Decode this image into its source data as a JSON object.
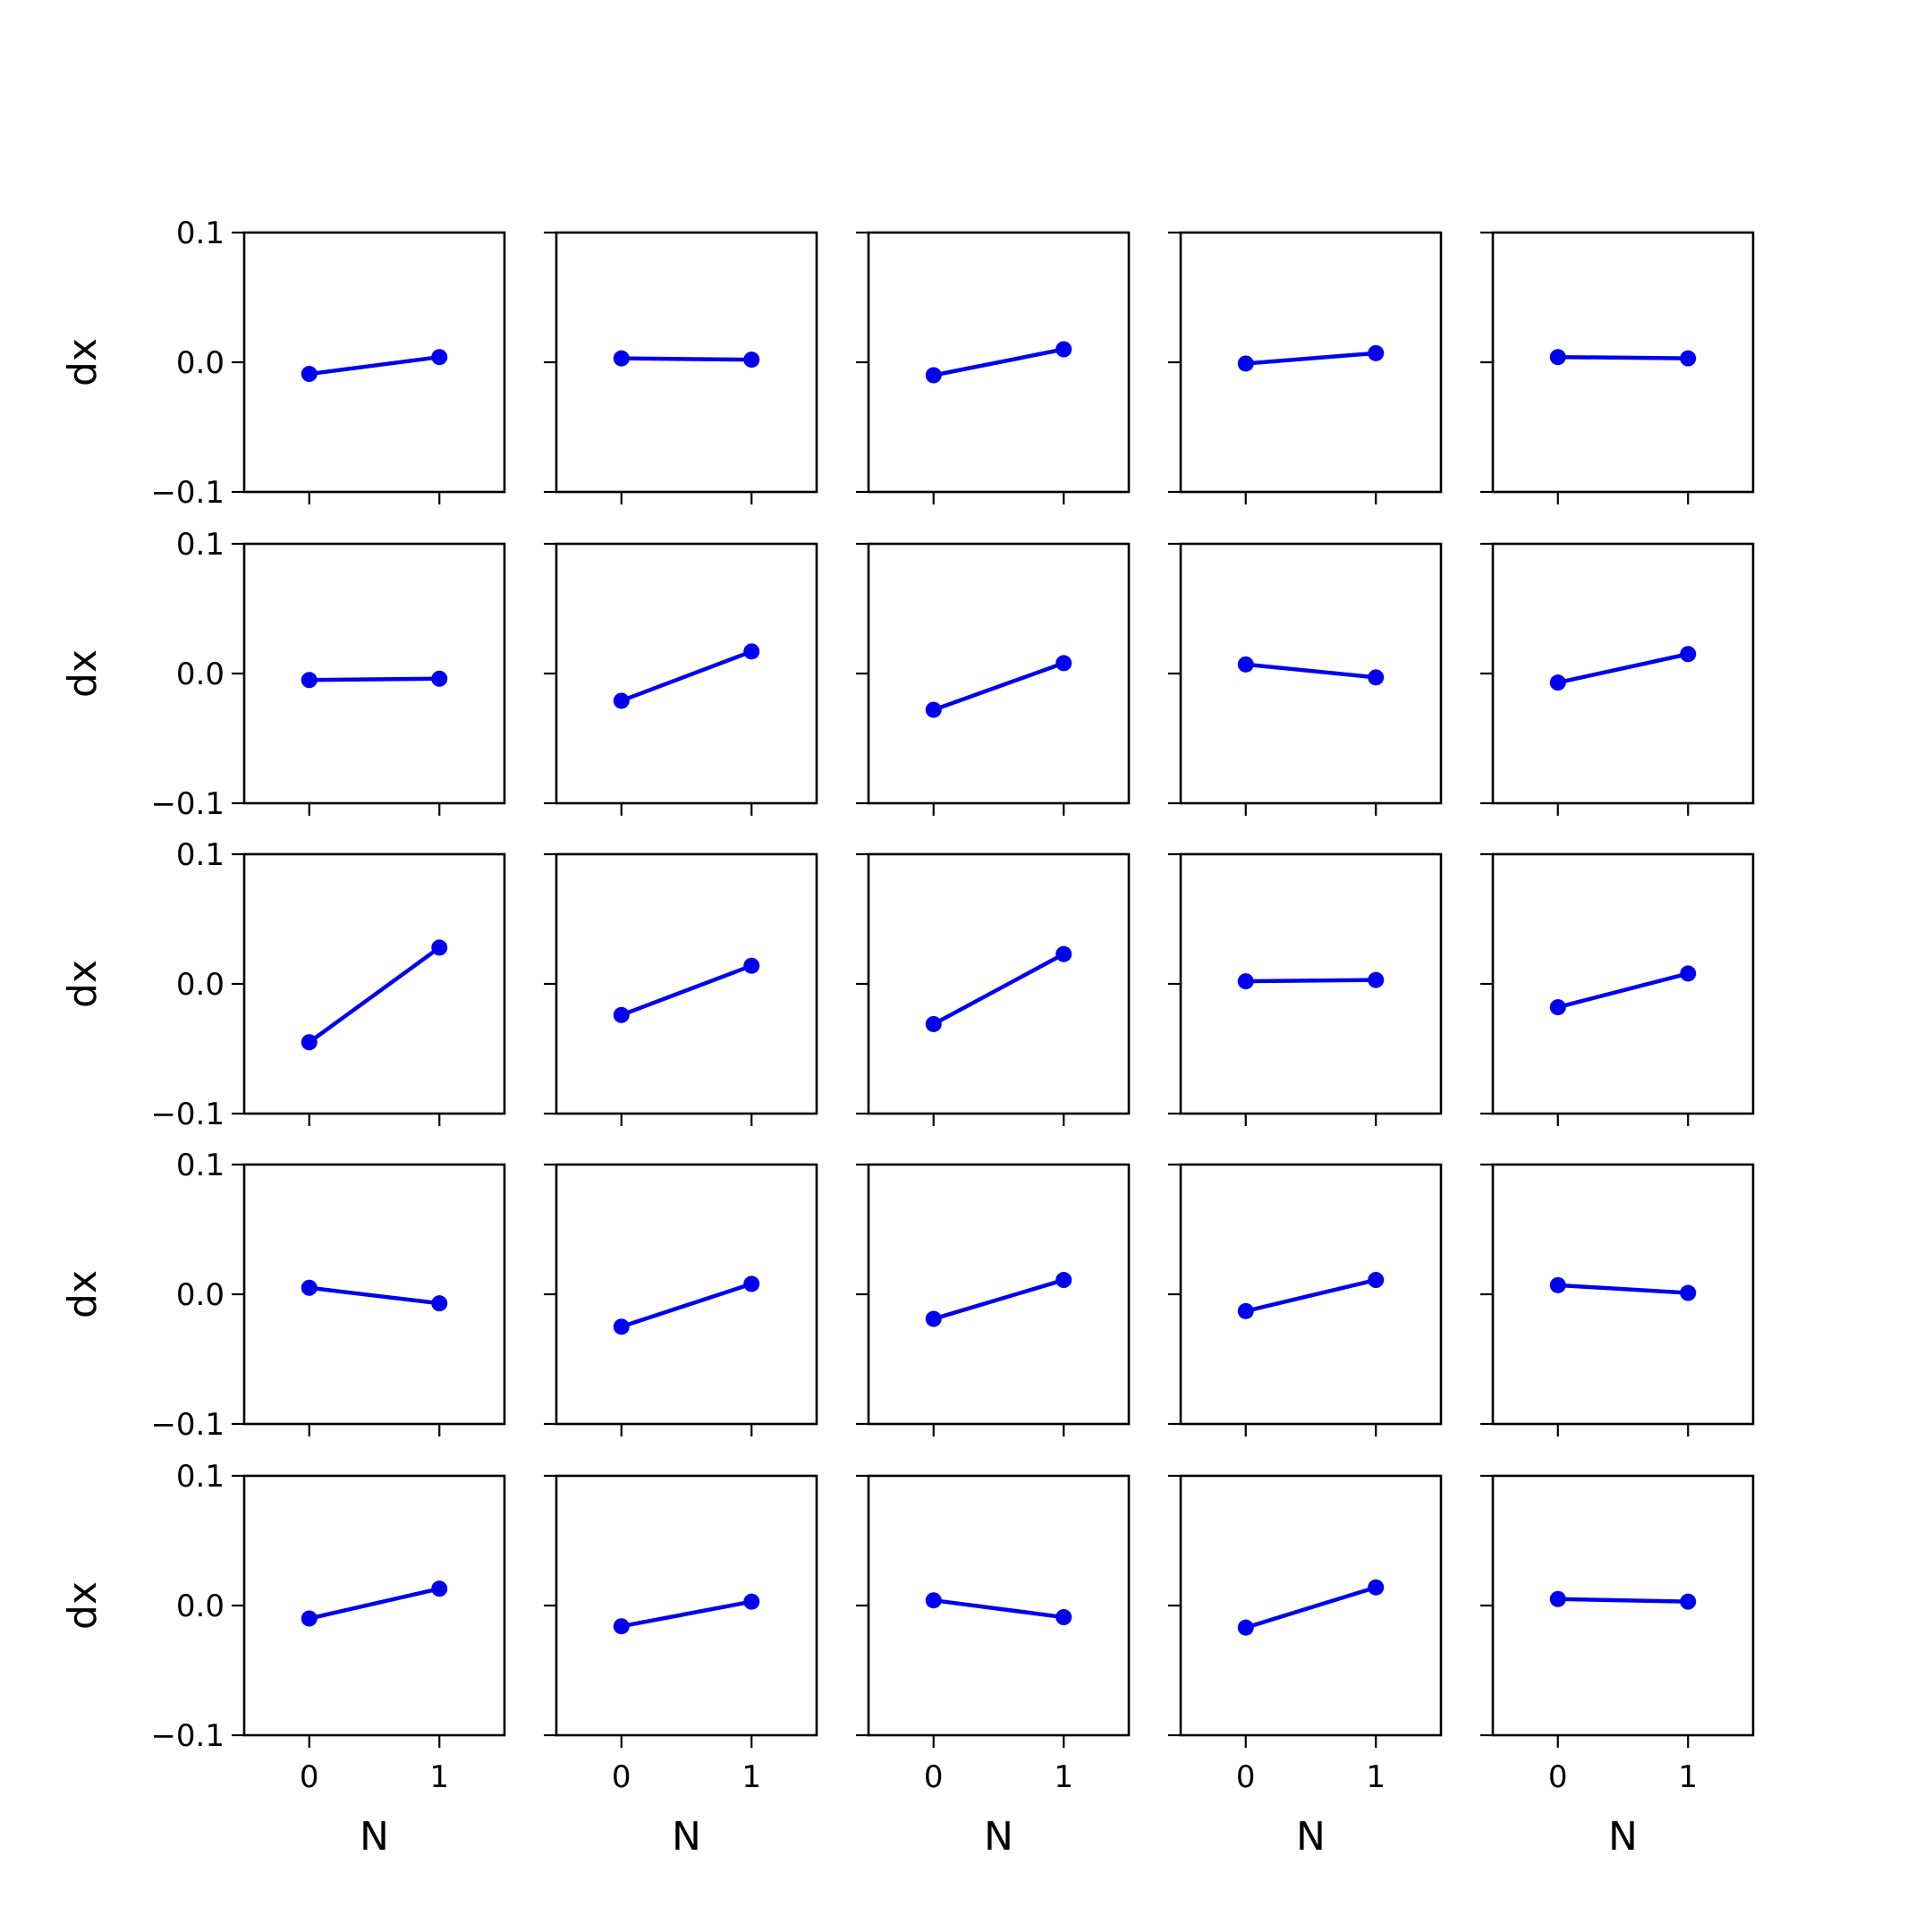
{
  "figure": {
    "rows": 5,
    "cols": 5,
    "line_color": "#0000ee",
    "xlabel": "N",
    "ylabel": "dx",
    "xlim": [
      -0.5,
      1.5
    ],
    "ylim": [
      -0.1,
      0.1
    ],
    "xticks": [
      0,
      1
    ],
    "xtick_labels": [
      "0",
      "1"
    ],
    "yticks": [
      0.1,
      0.0,
      -0.1
    ],
    "ytick_labels": [
      "0.1",
      "0.0",
      "−0.1"
    ]
  },
  "chart_data": [
    {
      "type": "line",
      "row": 0,
      "col": 0,
      "x": [
        0,
        1
      ],
      "y": [
        -0.009,
        0.004
      ]
    },
    {
      "type": "line",
      "row": 0,
      "col": 1,
      "x": [
        0,
        1
      ],
      "y": [
        0.003,
        0.002
      ]
    },
    {
      "type": "line",
      "row": 0,
      "col": 2,
      "x": [
        0,
        1
      ],
      "y": [
        -0.01,
        0.01
      ]
    },
    {
      "type": "line",
      "row": 0,
      "col": 3,
      "x": [
        0,
        1
      ],
      "y": [
        -0.001,
        0.007
      ]
    },
    {
      "type": "line",
      "row": 0,
      "col": 4,
      "x": [
        0,
        1
      ],
      "y": [
        0.004,
        0.003
      ]
    },
    {
      "type": "line",
      "row": 1,
      "col": 0,
      "x": [
        0,
        1
      ],
      "y": [
        -0.005,
        -0.004
      ]
    },
    {
      "type": "line",
      "row": 1,
      "col": 1,
      "x": [
        0,
        1
      ],
      "y": [
        -0.021,
        0.017
      ]
    },
    {
      "type": "line",
      "row": 1,
      "col": 2,
      "x": [
        0,
        1
      ],
      "y": [
        -0.028,
        0.008
      ]
    },
    {
      "type": "line",
      "row": 1,
      "col": 3,
      "x": [
        0,
        1
      ],
      "y": [
        0.007,
        -0.003
      ]
    },
    {
      "type": "line",
      "row": 1,
      "col": 4,
      "x": [
        0,
        1
      ],
      "y": [
        -0.007,
        0.015
      ]
    },
    {
      "type": "line",
      "row": 2,
      "col": 0,
      "x": [
        0,
        1
      ],
      "y": [
        -0.045,
        0.028
      ]
    },
    {
      "type": "line",
      "row": 2,
      "col": 1,
      "x": [
        0,
        1
      ],
      "y": [
        -0.024,
        0.014
      ]
    },
    {
      "type": "line",
      "row": 2,
      "col": 2,
      "x": [
        0,
        1
      ],
      "y": [
        -0.031,
        0.023
      ]
    },
    {
      "type": "line",
      "row": 2,
      "col": 3,
      "x": [
        0,
        1
      ],
      "y": [
        0.002,
        0.003
      ]
    },
    {
      "type": "line",
      "row": 2,
      "col": 4,
      "x": [
        0,
        1
      ],
      "y": [
        -0.018,
        0.008
      ]
    },
    {
      "type": "line",
      "row": 3,
      "col": 0,
      "x": [
        0,
        1
      ],
      "y": [
        0.005,
        -0.007
      ]
    },
    {
      "type": "line",
      "row": 3,
      "col": 1,
      "x": [
        0,
        1
      ],
      "y": [
        -0.025,
        0.008
      ]
    },
    {
      "type": "line",
      "row": 3,
      "col": 2,
      "x": [
        0,
        1
      ],
      "y": [
        -0.019,
        0.011
      ]
    },
    {
      "type": "line",
      "row": 3,
      "col": 3,
      "x": [
        0,
        1
      ],
      "y": [
        -0.013,
        0.011
      ]
    },
    {
      "type": "line",
      "row": 3,
      "col": 4,
      "x": [
        0,
        1
      ],
      "y": [
        0.007,
        0.001
      ]
    },
    {
      "type": "line",
      "row": 4,
      "col": 0,
      "x": [
        0,
        1
      ],
      "y": [
        -0.01,
        0.013
      ]
    },
    {
      "type": "line",
      "row": 4,
      "col": 1,
      "x": [
        0,
        1
      ],
      "y": [
        -0.016,
        0.003
      ]
    },
    {
      "type": "line",
      "row": 4,
      "col": 2,
      "x": [
        0,
        1
      ],
      "y": [
        0.004,
        -0.009
      ]
    },
    {
      "type": "line",
      "row": 4,
      "col": 3,
      "x": [
        0,
        1
      ],
      "y": [
        -0.017,
        0.014
      ]
    },
    {
      "type": "line",
      "row": 4,
      "col": 4,
      "x": [
        0,
        1
      ],
      "y": [
        0.005,
        0.003
      ]
    }
  ]
}
